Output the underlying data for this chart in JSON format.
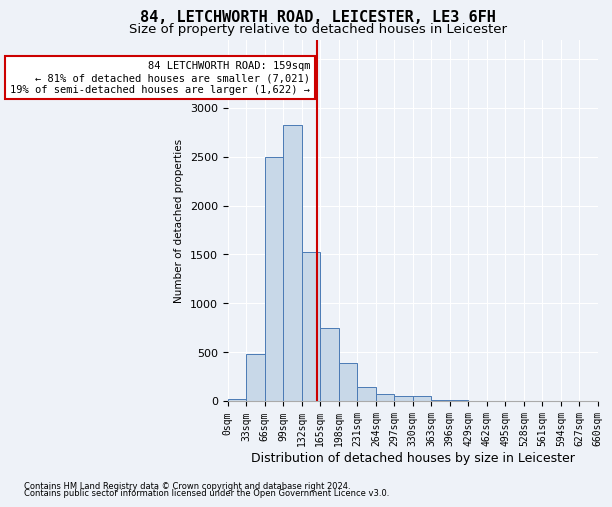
{
  "title1": "84, LETCHWORTH ROAD, LEICESTER, LE3 6FH",
  "title2": "Size of property relative to detached houses in Leicester",
  "xlabel": "Distribution of detached houses by size in Leicester",
  "ylabel": "Number of detached properties",
  "footnote1": "Contains HM Land Registry data © Crown copyright and database right 2024.",
  "footnote2": "Contains public sector information licensed under the Open Government Licence v3.0.",
  "annotation_line1": "84 LETCHWORTH ROAD: 159sqm",
  "annotation_line2": "← 81% of detached houses are smaller (7,021)",
  "annotation_line3": "19% of semi-detached houses are larger (1,622) →",
  "bar_color": "#c8d8e8",
  "bar_edge_color": "#4a7ab5",
  "vline_color": "#cc0000",
  "vline_x": 159,
  "bar_bins": [
    0,
    33,
    66,
    99,
    132,
    165,
    198,
    231,
    264,
    297,
    330,
    363,
    396,
    429,
    462,
    495,
    528,
    561,
    594,
    627,
    660
  ],
  "bar_heights": [
    20,
    480,
    2500,
    2820,
    1520,
    750,
    390,
    140,
    70,
    55,
    55,
    10,
    5,
    0,
    0,
    0,
    0,
    0,
    0,
    0
  ],
  "ylim": [
    0,
    3700
  ],
  "yticks": [
    0,
    500,
    1000,
    1500,
    2000,
    2500,
    3000,
    3500
  ],
  "xlim": [
    0,
    660
  ],
  "bg_color": "#eef2f8",
  "plot_bg_color": "#eef2f8",
  "grid_color": "#ffffff",
  "title1_fontsize": 11,
  "title2_fontsize": 9.5,
  "annotation_fontsize": 7.5,
  "ylabel_fontsize": 7.5,
  "xlabel_fontsize": 9,
  "footnote_fontsize": 6
}
